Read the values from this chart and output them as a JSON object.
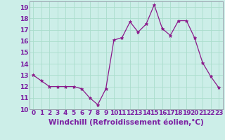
{
  "x": [
    0,
    1,
    2,
    3,
    4,
    5,
    6,
    7,
    8,
    9,
    10,
    11,
    12,
    13,
    14,
    15,
    16,
    17,
    18,
    19,
    20,
    21,
    22,
    23
  ],
  "y": [
    13.0,
    12.5,
    12.0,
    12.0,
    12.0,
    12.0,
    11.8,
    11.0,
    10.4,
    11.8,
    16.1,
    16.3,
    17.7,
    16.8,
    17.5,
    19.2,
    17.1,
    16.5,
    17.8,
    17.8,
    16.3,
    14.1,
    12.9,
    11.9
  ],
  "line_color": "#8b1a8b",
  "marker": "*",
  "marker_size": 3.5,
  "bg_color": "#cceee8",
  "grid_color": "#aaddcc",
  "xlabel": "Windchill (Refroidissement éolien,°C)",
  "xlim": [
    -0.5,
    23.5
  ],
  "ylim": [
    10,
    19.5
  ],
  "yticks": [
    10,
    11,
    12,
    13,
    14,
    15,
    16,
    17,
    18,
    19
  ],
  "xticks": [
    0,
    1,
    2,
    3,
    4,
    5,
    6,
    7,
    8,
    9,
    10,
    11,
    12,
    13,
    14,
    15,
    16,
    17,
    18,
    19,
    20,
    21,
    22,
    23
  ],
  "tick_label_size": 6.5,
  "xlabel_size": 7.5,
  "text_color": "#7b1fa2"
}
